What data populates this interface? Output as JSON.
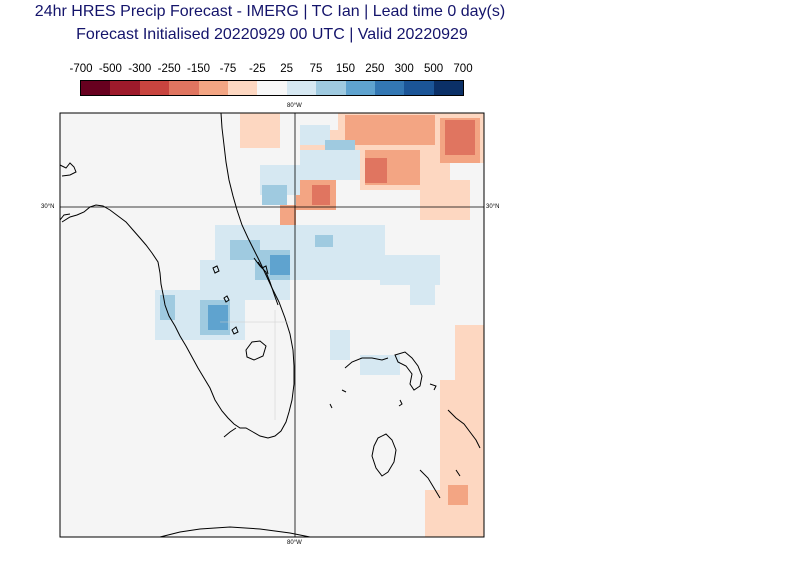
{
  "title_line1": "24hr HRES Precip Forecast - IMERG | TC Ian | Lead time 0 day(s)",
  "title_line2": "Forecast Initialised 20220929 00 UTC | Valid 20220929",
  "colorbar": {
    "labels": [
      "-700",
      "-500",
      "-300",
      "-250",
      "-150",
      "-75",
      "-25",
      "25",
      "75",
      "150",
      "250",
      "300",
      "500",
      "700"
    ],
    "colors": [
      "#67001f",
      "#9e1a2b",
      "#c8443f",
      "#e07560",
      "#f3a583",
      "#fdd7c1",
      "#f7f7f7",
      "#d6e8f2",
      "#9fcae0",
      "#5fa3cf",
      "#3377b3",
      "#1b5597",
      "#0b3067"
    ]
  },
  "map": {
    "lon_label": "80°W",
    "lat_label": "30°N",
    "background": "#f5f5f5",
    "coast_color": "#000000"
  }
}
